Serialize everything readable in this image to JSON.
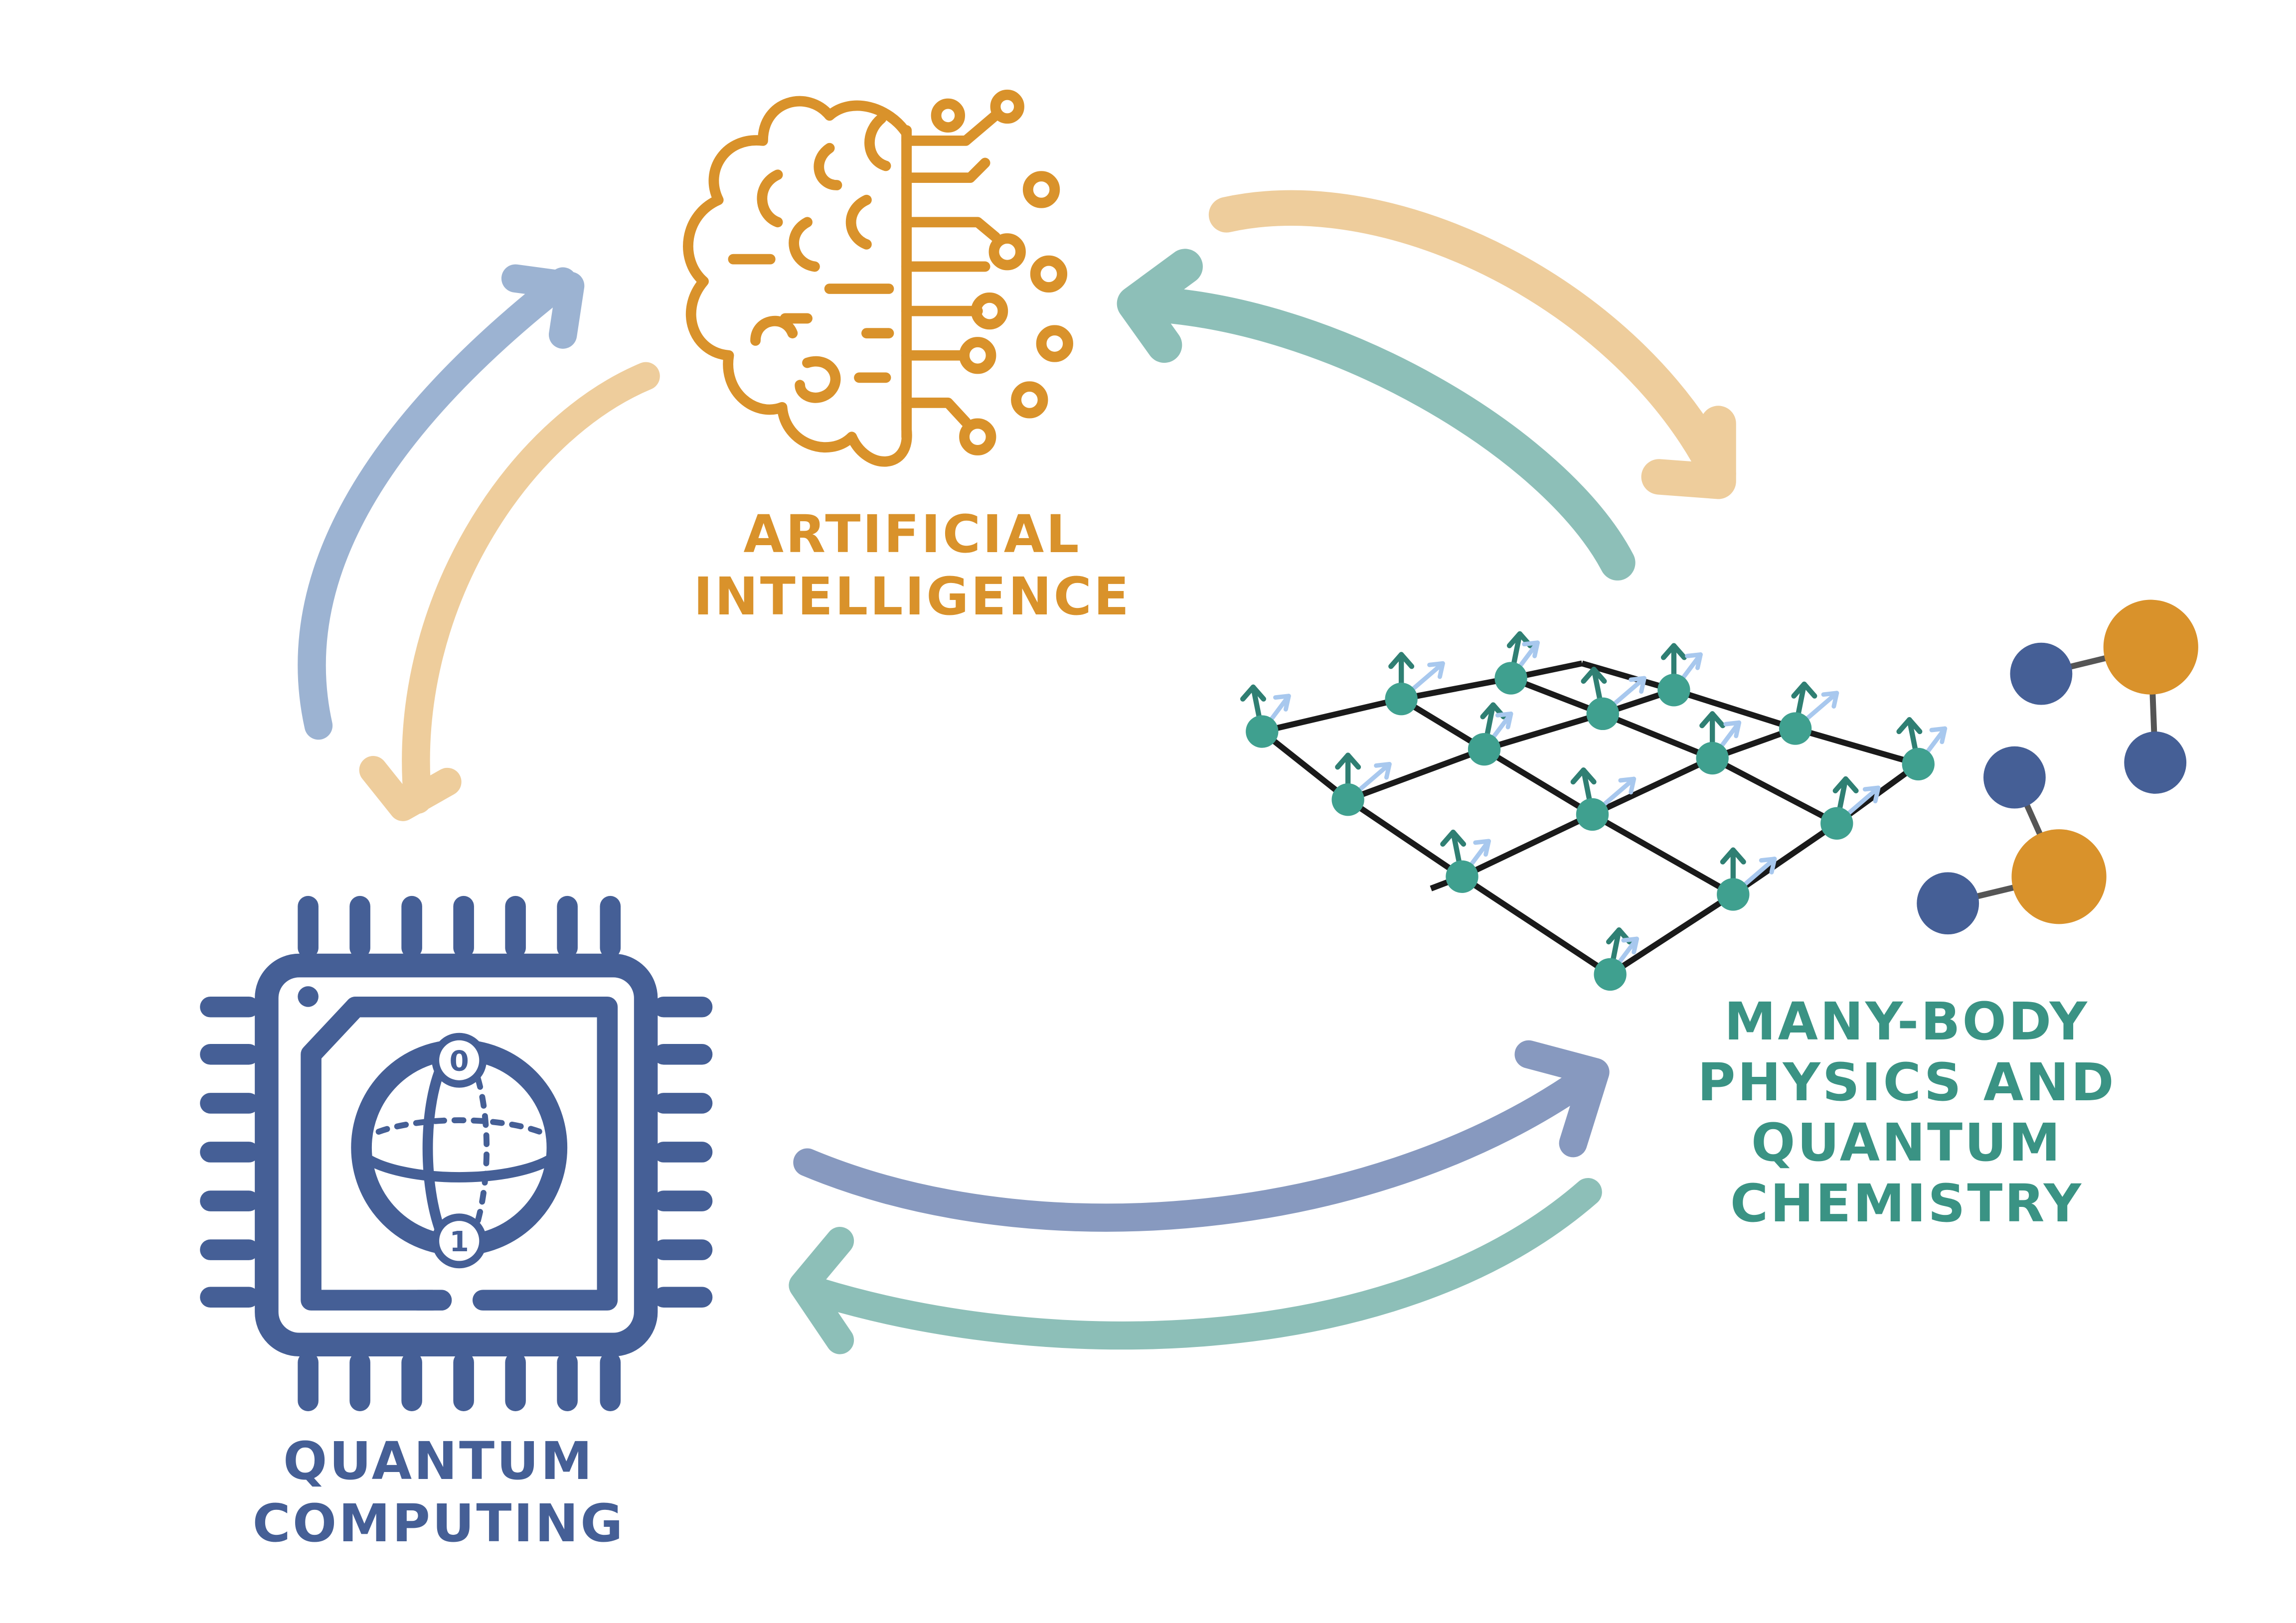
{
  "colors": {
    "ai": "#D9922B",
    "qc": "#455F96",
    "mb": "#3A9384",
    "arrow_ai": "#EECD9C",
    "arrow_qc_up": "#9CB3D2",
    "arrow_qc_right": "#8799BF",
    "arrow_mb": "#8DBFB8",
    "lattice_line": "#1A1A1A",
    "spin_dark": "#2F7F73",
    "spin_light": "#A8C8EE",
    "molecule_blue": "#455F96",
    "molecule_orange": "#D9922B",
    "bond": "#555555"
  },
  "nodes": {
    "ai": {
      "icon": "brain-circuit-icon",
      "label_lines": [
        "ARTIFICIAL",
        "INTELLIGENCE"
      ]
    },
    "qc": {
      "icon": "quantum-chip-icon",
      "label_lines": [
        "QUANTUM",
        "COMPUTING"
      ],
      "qubit_states": [
        "0",
        "1"
      ]
    },
    "mb": {
      "icons": [
        "spin-lattice-icon",
        "molecule-icon"
      ],
      "label_lines": [
        "MANY-BODY",
        "PHYSICS AND",
        "QUANTUM",
        "CHEMISTRY"
      ]
    }
  }
}
